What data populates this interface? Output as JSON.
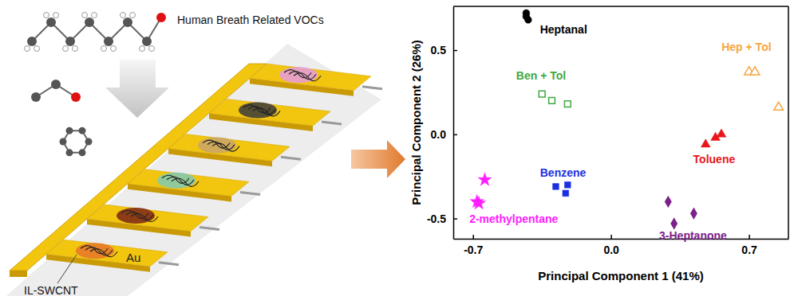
{
  "chart_data": {
    "type": "scatter",
    "x_label": "Principal Component 1 (41%)",
    "y_label": "Principal Component 2 (26%)",
    "xlim": [
      -0.8,
      0.9
    ],
    "ylim": [
      -0.62,
      0.76
    ],
    "xticks": [
      -0.7,
      {
        "value": 0,
        "label": "0.0"
      },
      0.7
    ],
    "yticks": [
      -0.5,
      {
        "value": 0,
        "label": "0.0"
      },
      0.5
    ],
    "series": [
      {
        "name": "Heptanal",
        "color": "#000000",
        "marker": "circle",
        "x": [
          -0.43,
          -0.42,
          -0.43
        ],
        "y": [
          0.7,
          0.68,
          0.72
        ]
      },
      {
        "name": "Ben + Tol",
        "color": "#3fa93f",
        "marker": "square-open",
        "x": [
          -0.35,
          -0.3,
          -0.22
        ],
        "y": [
          0.24,
          0.2,
          0.18
        ]
      },
      {
        "name": "Hep + Tol",
        "color": "#f7a440",
        "marker": "triangle-open",
        "x": [
          0.7,
          0.73,
          0.85
        ],
        "y": [
          0.37,
          0.37,
          0.16
        ]
      },
      {
        "name": "Toluene",
        "color": "#e8161b",
        "marker": "triangle",
        "x": [
          0.48,
          0.53,
          0.56
        ],
        "y": [
          -0.06,
          -0.02,
          0.0
        ]
      },
      {
        "name": "Benzene",
        "color": "#1a2fe0",
        "marker": "square",
        "x": [
          -0.28,
          -0.22,
          -0.23
        ],
        "y": [
          -0.31,
          -0.3,
          -0.35
        ]
      },
      {
        "name": "2-methylpentane",
        "color": "#ff1cff",
        "marker": "star",
        "x": [
          -0.68,
          -0.67,
          -0.64
        ],
        "y": [
          -0.4,
          -0.41,
          -0.27
        ]
      },
      {
        "name": "3-Heptanone",
        "color": "#7b1f8a",
        "marker": "diamond",
        "x": [
          0.29,
          0.42,
          0.32
        ],
        "y": [
          -0.4,
          -0.47,
          -0.53
        ]
      }
    ]
  },
  "diagram": {
    "texts": [
      "Human Breath Related VOCs",
      "IL-SWCNT",
      "Au"
    ]
  }
}
